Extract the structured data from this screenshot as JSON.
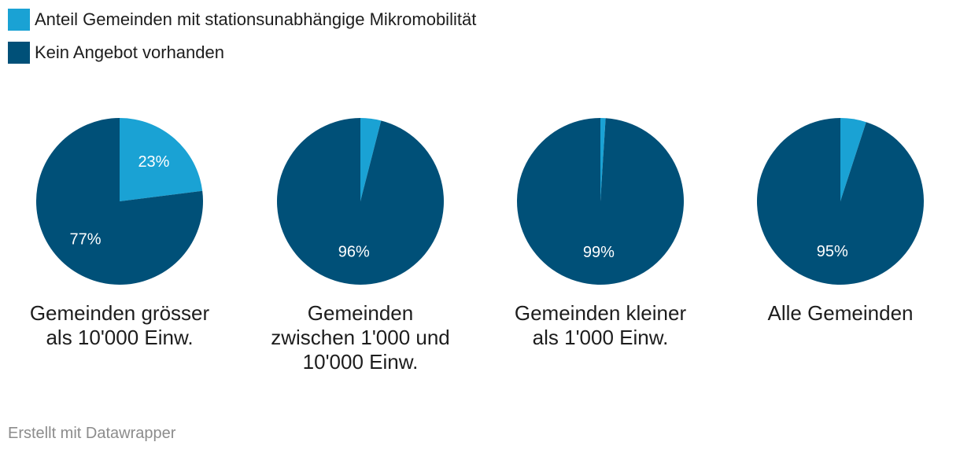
{
  "colors": {
    "primary": "#1aa2d4",
    "secondary": "#005078"
  },
  "legend": [
    {
      "label": "Anteil Gemeinden mit stationsunabhängige Mikromobilität",
      "color": "#1aa2d4"
    },
    {
      "label": "Kein Angebot vorhanden",
      "color": "#005078"
    }
  ],
  "chart_data": [
    {
      "type": "pie",
      "title": [
        "Gemeinden grösser",
        "als 10'000 Einw."
      ],
      "slices": [
        {
          "name": "Anteil Gemeinden mit stationsunabhängige Mikromobilität",
          "value": 23,
          "label": "23%",
          "color": "#1aa2d4"
        },
        {
          "name": "Kein Angebot vorhanden",
          "value": 77,
          "label": "77%",
          "color": "#005078"
        }
      ]
    },
    {
      "type": "pie",
      "title": [
        "Gemeinden",
        "zwischen 1'000 und",
        "10'000 Einw."
      ],
      "slices": [
        {
          "name": "Anteil Gemeinden mit stationsunabhängige Mikromobilität",
          "value": 4,
          "label": "",
          "color": "#1aa2d4"
        },
        {
          "name": "Kein Angebot vorhanden",
          "value": 96,
          "label": "96%",
          "color": "#005078"
        }
      ]
    },
    {
      "type": "pie",
      "title": [
        "Gemeinden kleiner",
        "als 1'000 Einw."
      ],
      "slices": [
        {
          "name": "Anteil Gemeinden mit stationsunabhängige Mikromobilität",
          "value": 1,
          "label": "",
          "color": "#1aa2d4"
        },
        {
          "name": "Kein Angebot vorhanden",
          "value": 99,
          "label": "99%",
          "color": "#005078"
        }
      ]
    },
    {
      "type": "pie",
      "title": [
        "Alle Gemeinden"
      ],
      "slices": [
        {
          "name": "Anteil Gemeinden mit stationsunabhängige Mikromobilität",
          "value": 5,
          "label": "",
          "color": "#1aa2d4"
        },
        {
          "name": "Kein Angebot vorhanden",
          "value": 95,
          "label": "95%",
          "color": "#005078"
        }
      ]
    }
  ],
  "footer": {
    "credit": "Erstellt mit Datawrapper"
  }
}
